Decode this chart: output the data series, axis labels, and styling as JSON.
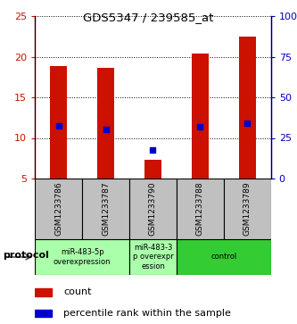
{
  "title": "GDS5347 / 239585_at",
  "samples": [
    "GSM1233786",
    "GSM1233787",
    "GSM1233790",
    "GSM1233788",
    "GSM1233789"
  ],
  "bar_heights": [
    18.9,
    18.6,
    7.3,
    20.4,
    22.5
  ],
  "bar_bottom": 5.0,
  "blue_marker_y_left": [
    11.5,
    11.0,
    8.5,
    11.4,
    11.8
  ],
  "bar_color": "#CC1100",
  "blue_color": "#0000CC",
  "ylim_left": [
    5,
    25
  ],
  "ylim_right": [
    0,
    100
  ],
  "yticks_left": [
    5,
    10,
    15,
    20,
    25
  ],
  "yticks_right": [
    0,
    25,
    50,
    75,
    100
  ],
  "ytick_labels_right": [
    "0",
    "25",
    "50",
    "75",
    "100%"
  ],
  "groups": [
    {
      "label": "miR-483-5p\noverexpression",
      "samples": [
        0,
        1
      ],
      "color": "#AAFFAA"
    },
    {
      "label": "miR-483-3\np overexpr\nession",
      "samples": [
        2
      ],
      "color": "#AAFFAA"
    },
    {
      "label": "control",
      "samples": [
        3,
        4
      ],
      "color": "#33CC33"
    }
  ],
  "protocol_label": "protocol",
  "legend_count_label": "count",
  "legend_percentile_label": "percentile rank within the sample",
  "axis_color_left": "#CC1100",
  "axis_color_right": "#0000BB",
  "sample_box_color": "#C0C0C0",
  "bar_width": 0.35
}
